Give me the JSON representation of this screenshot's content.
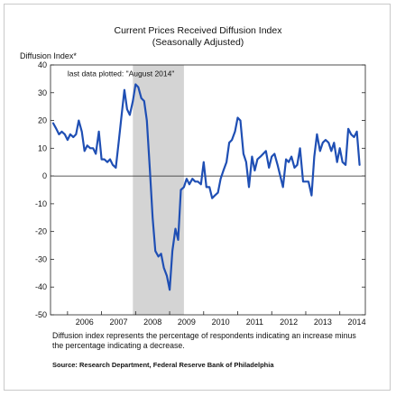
{
  "chart_data": {
    "type": "line",
    "title": "Current Prices Received Diffusion Index",
    "subtitle": "(Seasonally Adjusted)",
    "ylabel": "Diffusion Index*",
    "xlabel": "",
    "ylim": [
      -50,
      40
    ],
    "yticks": [
      -50,
      -40,
      -30,
      -20,
      -10,
      0,
      10,
      20,
      30,
      40
    ],
    "xlim": [
      2005.5,
      2014.75
    ],
    "xtick_labels": [
      "2006",
      "2007",
      "2008",
      "2009",
      "2010",
      "2011",
      "2012",
      "2013",
      "2014"
    ],
    "annotation": "last data plotted: \"August 2014\"",
    "shaded_region": {
      "label": "recession",
      "start": 2007.92,
      "end": 2009.42
    },
    "grid": false,
    "series": [
      {
        "color": "#1f4fb4",
        "x": [
          2005.58,
          2005.67,
          2005.75,
          2005.83,
          2005.92,
          2006.0,
          2006.08,
          2006.17,
          2006.25,
          2006.33,
          2006.42,
          2006.5,
          2006.58,
          2006.67,
          2006.75,
          2006.83,
          2006.92,
          2007.0,
          2007.08,
          2007.17,
          2007.25,
          2007.33,
          2007.42,
          2007.5,
          2007.58,
          2007.67,
          2007.75,
          2007.83,
          2007.92,
          2008.0,
          2008.08,
          2008.17,
          2008.25,
          2008.33,
          2008.42,
          2008.5,
          2008.58,
          2008.67,
          2008.75,
          2008.83,
          2008.92,
          2009.0,
          2009.08,
          2009.17,
          2009.25,
          2009.33,
          2009.42,
          2009.5,
          2009.58,
          2009.67,
          2009.75,
          2009.83,
          2009.92,
          2010.0,
          2010.08,
          2010.17,
          2010.25,
          2010.33,
          2010.42,
          2010.5,
          2010.58,
          2010.67,
          2010.75,
          2010.83,
          2010.92,
          2011.0,
          2011.08,
          2011.17,
          2011.25,
          2011.33,
          2011.42,
          2011.5,
          2011.58,
          2011.67,
          2011.75,
          2011.83,
          2011.92,
          2012.0,
          2012.08,
          2012.17,
          2012.25,
          2012.33,
          2012.42,
          2012.5,
          2012.58,
          2012.67,
          2012.75,
          2012.83,
          2012.92,
          2013.0,
          2013.08,
          2013.17,
          2013.25,
          2013.33,
          2013.42,
          2013.5,
          2013.58,
          2013.67,
          2013.75,
          2013.83,
          2013.92,
          2014.0,
          2014.08,
          2014.17,
          2014.25,
          2014.33,
          2014.42,
          2014.5,
          2014.58
        ],
        "y": [
          19,
          17,
          15,
          16,
          15,
          13,
          15,
          14,
          15,
          20,
          16,
          9,
          11,
          10,
          10,
          8,
          16,
          6,
          6,
          5,
          6,
          4,
          3,
          12,
          21,
          31,
          24,
          22,
          27,
          33,
          32,
          28,
          27,
          20,
          2,
          -15,
          -27,
          -29,
          -28,
          -33,
          -36,
          -41,
          -27,
          -19,
          -23,
          -5,
          -4,
          -1,
          -3,
          -1,
          -2,
          -2,
          -3,
          5,
          -4,
          -4,
          -8,
          -7,
          -6,
          -1,
          2,
          5,
          12,
          13,
          16,
          21,
          20,
          8,
          5,
          -4,
          7,
          2,
          6,
          7,
          8,
          9,
          3,
          7,
          8,
          4,
          0,
          -4,
          6,
          5,
          7,
          3,
          4,
          10,
          -2,
          -2,
          -2,
          -7,
          7,
          15,
          9,
          12,
          13,
          12,
          9,
          12,
          5,
          10,
          5,
          4,
          17,
          15,
          14,
          16,
          4
        ]
      }
    ]
  },
  "footnote": "Diffusion index represents the percentage of respondents indicating an increase minus the percentage indicating a decrease.",
  "source": "Source: Research Department, Federal Reserve Bank of Philadelphia"
}
